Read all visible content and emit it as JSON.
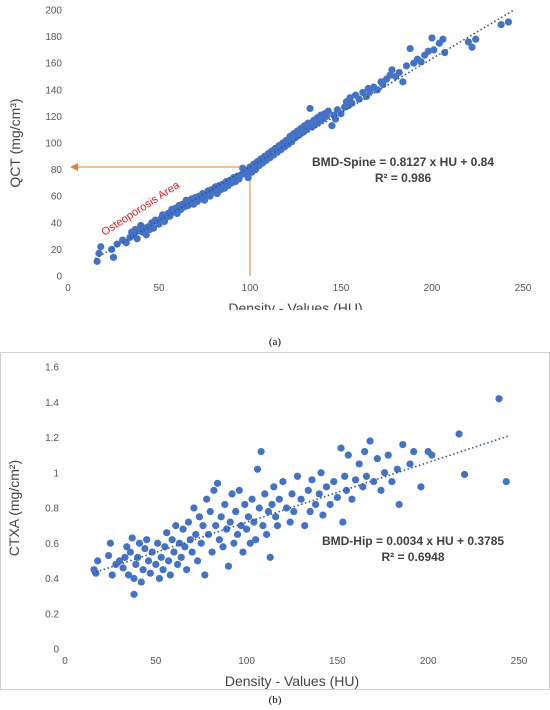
{
  "captions": {
    "a": "(a)",
    "b": "(b)"
  },
  "chart_data": [
    {
      "type": "scatter",
      "panel": "a",
      "xlabel": "Density - Values (HU)",
      "ylabel": "QCT (mg/cm³)",
      "xlim": [
        0,
        250
      ],
      "ylim": [
        0,
        200
      ],
      "xticks": [
        0,
        50,
        100,
        150,
        200,
        250
      ],
      "yticks": [
        0,
        20,
        40,
        60,
        80,
        100,
        120,
        140,
        160,
        180,
        200
      ],
      "grid": false,
      "marker_color": "#4472C4",
      "trendline": {
        "style": "dotted",
        "color": "#2F5597",
        "slope": 0.8127,
        "intercept": 0.84,
        "x_range": [
          15,
          245
        ]
      },
      "equation": "BMD-Spine = 0.8127 x HU + 0.84",
      "r_squared": "R² = 0.986",
      "annotation": {
        "text": "Osteoporosis Area",
        "color": "#d62020",
        "threshold_x": 100,
        "threshold_y": 82,
        "line_color": "#ED7D31"
      },
      "points": [
        [
          16,
          11
        ],
        [
          17,
          17
        ],
        [
          18,
          22
        ],
        [
          24,
          20
        ],
        [
          25,
          14
        ],
        [
          27,
          24
        ],
        [
          30,
          27
        ],
        [
          32,
          25
        ],
        [
          34,
          29
        ],
        [
          35,
          33
        ],
        [
          36,
          31
        ],
        [
          37,
          35
        ],
        [
          38,
          28
        ],
        [
          39,
          34
        ],
        [
          40,
          38
        ],
        [
          41,
          33
        ],
        [
          42,
          36
        ],
        [
          43,
          31
        ],
        [
          44,
          37
        ],
        [
          45,
          35
        ],
        [
          46,
          40
        ],
        [
          47,
          36
        ],
        [
          48,
          42
        ],
        [
          50,
          39
        ],
        [
          51,
          43
        ],
        [
          52,
          46
        ],
        [
          53,
          41
        ],
        [
          54,
          44
        ],
        [
          55,
          47
        ],
        [
          56,
          45
        ],
        [
          57,
          50
        ],
        [
          58,
          48
        ],
        [
          59,
          51
        ],
        [
          60,
          47
        ],
        [
          61,
          53
        ],
        [
          62,
          50
        ],
        [
          63,
          54
        ],
        [
          64,
          52
        ],
        [
          65,
          57
        ],
        [
          66,
          53
        ],
        [
          67,
          55
        ],
        [
          68,
          58
        ],
        [
          69,
          54
        ],
        [
          70,
          59
        ],
        [
          71,
          56
        ],
        [
          72,
          60
        ],
        [
          73,
          58
        ],
        [
          74,
          62
        ],
        [
          75,
          57
        ],
        [
          76,
          61
        ],
        [
          77,
          64
        ],
        [
          78,
          60
        ],
        [
          79,
          65
        ],
        [
          80,
          63
        ],
        [
          81,
          67
        ],
        [
          82,
          62
        ],
        [
          83,
          68
        ],
        [
          84,
          65
        ],
        [
          85,
          69
        ],
        [
          86,
          66
        ],
        [
          87,
          71
        ],
        [
          88,
          68
        ],
        [
          89,
          72
        ],
        [
          90,
          70
        ],
        [
          91,
          74
        ],
        [
          92,
          71
        ],
        [
          93,
          75
        ],
        [
          94,
          73
        ],
        [
          95,
          76
        ],
        [
          96,
          81
        ],
        [
          97,
          77
        ],
        [
          98,
          79
        ],
        [
          99,
          74
        ],
        [
          100,
          82
        ],
        [
          101,
          78
        ],
        [
          102,
          84
        ],
        [
          103,
          80
        ],
        [
          104,
          86
        ],
        [
          105,
          83
        ],
        [
          106,
          88
        ],
        [
          107,
          85
        ],
        [
          108,
          90
        ],
        [
          109,
          87
        ],
        [
          110,
          92
        ],
        [
          111,
          89
        ],
        [
          112,
          94
        ],
        [
          113,
          91
        ],
        [
          114,
          96
        ],
        [
          115,
          93
        ],
        [
          116,
          98
        ],
        [
          117,
          95
        ],
        [
          118,
          100
        ],
        [
          119,
          97
        ],
        [
          120,
          102
        ],
        [
          121,
          99
        ],
        [
          122,
          105
        ],
        [
          123,
          101
        ],
        [
          124,
          107
        ],
        [
          125,
          104
        ],
        [
          126,
          109
        ],
        [
          127,
          106
        ],
        [
          128,
          111
        ],
        [
          129,
          108
        ],
        [
          130,
          113
        ],
        [
          131,
          110
        ],
        [
          132,
          115
        ],
        [
          133,
          126
        ],
        [
          134,
          112
        ],
        [
          135,
          117
        ],
        [
          136,
          114
        ],
        [
          137,
          119
        ],
        [
          138,
          116
        ],
        [
          139,
          121
        ],
        [
          140,
          118
        ],
        [
          141,
          122
        ],
        [
          142,
          120
        ],
        [
          143,
          124
        ],
        [
          145,
          113
        ],
        [
          146,
          121
        ],
        [
          147,
          118
        ],
        [
          148,
          125
        ],
        [
          150,
          122
        ],
        [
          152,
          127
        ],
        [
          153,
          131
        ],
        [
          154,
          128
        ],
        [
          155,
          134
        ],
        [
          156,
          130
        ],
        [
          158,
          136
        ],
        [
          160,
          133
        ],
        [
          162,
          138
        ],
        [
          164,
          135
        ],
        [
          165,
          141
        ],
        [
          166,
          139
        ],
        [
          168,
          142
        ],
        [
          170,
          140
        ],
        [
          172,
          146
        ],
        [
          173,
          144
        ],
        [
          175,
          148
        ],
        [
          177,
          151
        ],
        [
          178,
          155
        ],
        [
          180,
          150
        ],
        [
          182,
          153
        ],
        [
          184,
          146
        ],
        [
          186,
          158
        ],
        [
          188,
          171
        ],
        [
          190,
          160
        ],
        [
          192,
          163
        ],
        [
          194,
          161
        ],
        [
          196,
          166
        ],
        [
          198,
          169
        ],
        [
          200,
          179
        ],
        [
          201,
          170
        ],
        [
          204,
          175
        ],
        [
          206,
          178
        ],
        [
          207,
          168
        ],
        [
          220,
          176
        ],
        [
          222,
          172
        ],
        [
          224,
          178
        ],
        [
          238,
          189
        ],
        [
          242,
          191
        ]
      ]
    },
    {
      "type": "scatter",
      "panel": "b",
      "xlabel": "Density - Values (HU)",
      "ylabel": "CTXA (mg/cm²)",
      "xlim": [
        0,
        250
      ],
      "ylim": [
        0,
        1.6
      ],
      "xticks": [
        0,
        50,
        100,
        150,
        200,
        250
      ],
      "yticks": [
        0,
        0.2,
        0.4,
        0.6,
        0.8,
        1,
        1.2,
        1.4,
        1.6
      ],
      "grid": false,
      "marker_color": "#4472C4",
      "trendline": {
        "style": "dotted",
        "color": "#2F5597",
        "slope": 0.0034,
        "intercept": 0.3785,
        "x_range": [
          15,
          245
        ]
      },
      "equation": "BMD-Hip = 0.0034 x HU + 0.3785",
      "r_squared": "R² = 0.6948",
      "points": [
        [
          16,
          0.45
        ],
        [
          17,
          0.43
        ],
        [
          18,
          0.5
        ],
        [
          24,
          0.53
        ],
        [
          25,
          0.6
        ],
        [
          26,
          0.42
        ],
        [
          28,
          0.48
        ],
        [
          30,
          0.5
        ],
        [
          32,
          0.46
        ],
        [
          33,
          0.52
        ],
        [
          34,
          0.58
        ],
        [
          35,
          0.42
        ],
        [
          36,
          0.55
        ],
        [
          37,
          0.63
        ],
        [
          38,
          0.31
        ],
        [
          38,
          0.4
        ],
        [
          39,
          0.48
        ],
        [
          40,
          0.52
        ],
        [
          41,
          0.6
        ],
        [
          42,
          0.38
        ],
        [
          43,
          0.45
        ],
        [
          44,
          0.57
        ],
        [
          45,
          0.62
        ],
        [
          46,
          0.5
        ],
        [
          47,
          0.43
        ],
        [
          48,
          0.55
        ],
        [
          50,
          0.48
        ],
        [
          51,
          0.6
        ],
        [
          52,
          0.4
        ],
        [
          53,
          0.52
        ],
        [
          54,
          0.45
        ],
        [
          55,
          0.58
        ],
        [
          56,
          0.66
        ],
        [
          57,
          0.5
        ],
        [
          58,
          0.42
        ],
        [
          59,
          0.62
        ],
        [
          60,
          0.55
        ],
        [
          61,
          0.7
        ],
        [
          62,
          0.48
        ],
        [
          63,
          0.6
        ],
        [
          64,
          0.52
        ],
        [
          65,
          0.68
        ],
        [
          66,
          0.58
        ],
        [
          67,
          0.45
        ],
        [
          68,
          0.72
        ],
        [
          69,
          0.62
        ],
        [
          70,
          0.55
        ],
        [
          71,
          0.8
        ],
        [
          72,
          0.65
        ],
        [
          73,
          0.5
        ],
        [
          74,
          0.75
        ],
        [
          75,
          0.6
        ],
        [
          76,
          0.7
        ],
        [
          77,
          0.42
        ],
        [
          78,
          0.85
        ],
        [
          79,
          0.65
        ],
        [
          80,
          0.78
        ],
        [
          81,
          0.55
        ],
        [
          82,
          0.9
        ],
        [
          83,
          0.7
        ],
        [
          84,
          0.94
        ],
        [
          85,
          0.62
        ],
        [
          86,
          0.75
        ],
        [
          87,
          0.58
        ],
        [
          88,
          0.82
        ],
        [
          89,
          0.68
        ],
        [
          90,
          0.47
        ],
        [
          91,
          0.72
        ],
        [
          92,
          0.88
        ],
        [
          93,
          0.6
        ],
        [
          94,
          0.78
        ],
        [
          95,
          0.65
        ],
        [
          96,
          0.9
        ],
        [
          97,
          0.7
        ],
        [
          98,
          0.55
        ],
        [
          99,
          0.82
        ],
        [
          100,
          0.68
        ],
        [
          101,
          0.75
        ],
        [
          102,
          0.6
        ],
        [
          103,
          0.85
        ],
        [
          104,
          0.72
        ],
        [
          105,
          0.62
        ],
        [
          106,
          1.02
        ],
        [
          107,
          0.8
        ],
        [
          108,
          1.12
        ],
        [
          109,
          0.7
        ],
        [
          110,
          0.88
        ],
        [
          111,
          0.65
        ],
        [
          112,
          0.78
        ],
        [
          113,
          0.52
        ],
        [
          114,
          0.82
        ],
        [
          115,
          0.92
        ],
        [
          116,
          0.75
        ],
        [
          117,
          0.7
        ],
        [
          118,
          0.85
        ],
        [
          120,
          0.95
        ],
        [
          122,
          0.8
        ],
        [
          124,
          0.72
        ],
        [
          125,
          0.88
        ],
        [
          126,
          0.78
        ],
        [
          128,
          0.98
        ],
        [
          130,
          0.85
        ],
        [
          132,
          0.7
        ],
        [
          134,
          0.9
        ],
        [
          135,
          0.78
        ],
        [
          136,
          0.96
        ],
        [
          138,
          0.82
        ],
        [
          140,
          0.88
        ],
        [
          141,
          1.0
        ],
        [
          142,
          0.76
        ],
        [
          144,
          0.92
        ],
        [
          146,
          0.82
        ],
        [
          148,
          0.95
        ],
        [
          150,
          0.86
        ],
        [
          152,
          1.14
        ],
        [
          153,
          0.72
        ],
        [
          154,
          0.98
        ],
        [
          155,
          0.9
        ],
        [
          156,
          1.1
        ],
        [
          158,
          0.85
        ],
        [
          160,
          0.96
        ],
        [
          162,
          1.05
        ],
        [
          164,
          0.92
        ],
        [
          165,
          1.12
        ],
        [
          166,
          0.98
        ],
        [
          168,
          1.18
        ],
        [
          170,
          0.95
        ],
        [
          172,
          1.08
        ],
        [
          174,
          0.9
        ],
        [
          176,
          1.0
        ],
        [
          178,
          1.1
        ],
        [
          180,
          0.95
        ],
        [
          183,
          1.02
        ],
        [
          184,
          0.82
        ],
        [
          186,
          1.16
        ],
        [
          190,
          1.05
        ],
        [
          192,
          1.12
        ],
        [
          196,
          0.92
        ],
        [
          200,
          1.12
        ],
        [
          202,
          1.1
        ],
        [
          217,
          1.22
        ],
        [
          220,
          0.99
        ],
        [
          239,
          1.42
        ],
        [
          243,
          0.95
        ]
      ]
    }
  ]
}
